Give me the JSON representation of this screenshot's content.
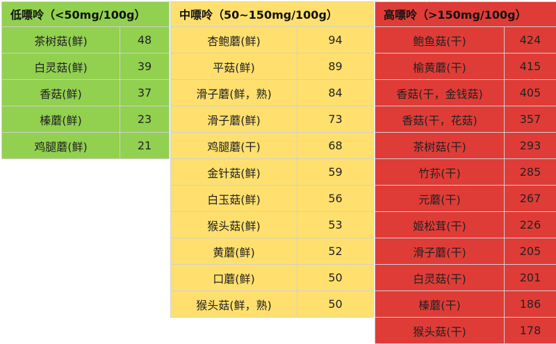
{
  "colors": {
    "low": "#92d050",
    "mid": "#ffe06e",
    "high": "#e03c37"
  },
  "groups": [
    {
      "title": "低嘌呤（<50mg/100g）",
      "color": "#92d050",
      "items": [
        {
          "name": "茶树菇(鲜)",
          "value": "48"
        },
        {
          "name": "白灵菇(鲜)",
          "value": "39"
        },
        {
          "name": "香菇(鲜)",
          "value": "37"
        },
        {
          "name": "榛蘑(鲜)",
          "value": "23"
        },
        {
          "name": "鸡腿蘑(鲜)",
          "value": "21"
        }
      ]
    },
    {
      "title": "中嘌呤（50~150mg/100g）",
      "color": "#ffe06e",
      "items": [
        {
          "name": "杏鲍蘑(鲜)",
          "value": "94"
        },
        {
          "name": "平菇(鲜)",
          "value": "89"
        },
        {
          "name": "滑子蘑(鲜，熟)",
          "value": "84"
        },
        {
          "name": "滑子蘑(鲜)",
          "value": "73"
        },
        {
          "name": "鸡腿蘑(干)",
          "value": "68"
        },
        {
          "name": "金针菇(鲜)",
          "value": "59"
        },
        {
          "name": "白玉菇(鲜)",
          "value": "56"
        },
        {
          "name": "猴头菇(鲜)",
          "value": "53"
        },
        {
          "name": "黄蘑(鲜)",
          "value": "52"
        },
        {
          "name": "口蘑(鲜)",
          "value": "50"
        },
        {
          "name": "猴头菇(鲜，熟)",
          "value": "50"
        }
      ]
    },
    {
      "title": "高嘌呤（>150mg/100g）",
      "color": "#e03c37",
      "items": [
        {
          "name": "鲍鱼菇(干)",
          "value": "424"
        },
        {
          "name": "榆黄蘑(干)",
          "value": "415"
        },
        {
          "name": "香菇(干，金钱菇)",
          "value": "405"
        },
        {
          "name": "香菇(干，花菇)",
          "value": "357"
        },
        {
          "name": "茶树菇(干)",
          "value": "293"
        },
        {
          "name": "竹荪(干)",
          "value": "285"
        },
        {
          "name": "元蘑(干)",
          "value": "267"
        },
        {
          "name": "姬松茸(干)",
          "value": "226"
        },
        {
          "name": "滑子蘑(干)",
          "value": "205"
        },
        {
          "name": "白灵菇(干)",
          "value": "201"
        },
        {
          "name": "榛蘑(干)",
          "value": "186"
        },
        {
          "name": "猴头菇(干)",
          "value": "178"
        }
      ]
    }
  ]
}
